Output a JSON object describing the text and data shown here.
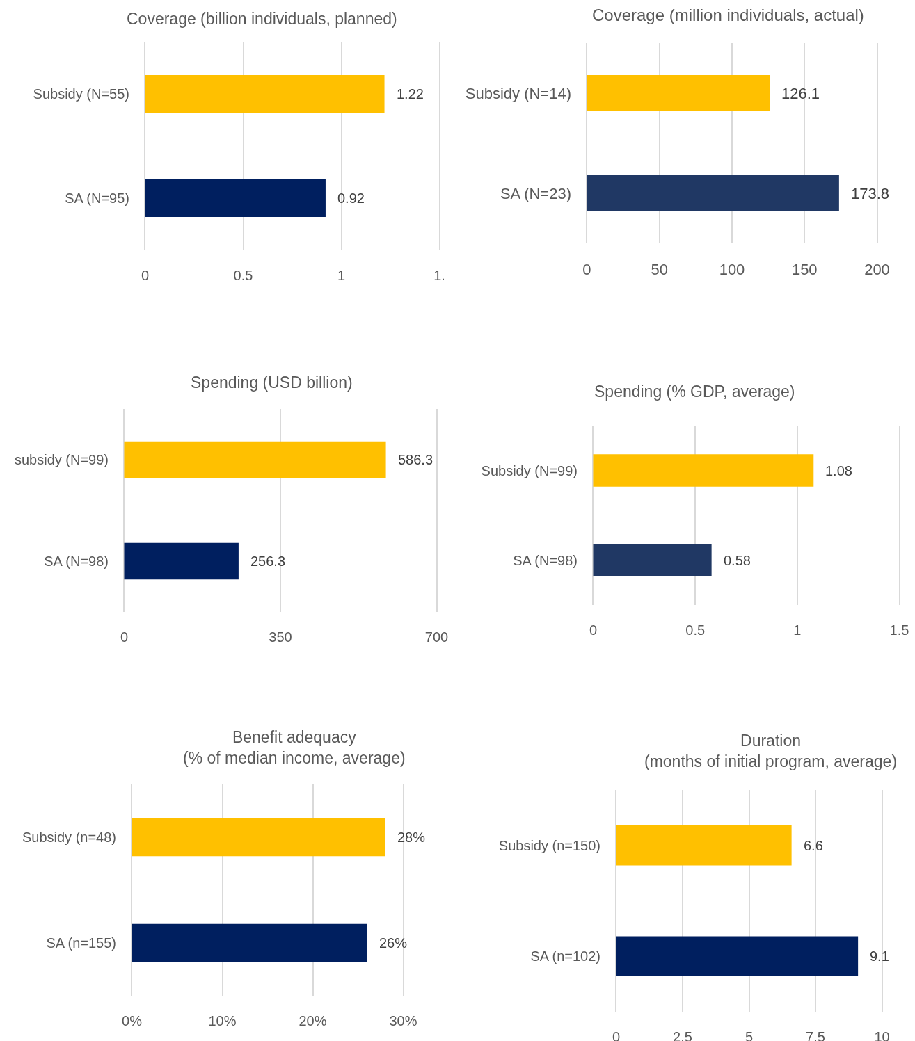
{
  "chart_data": [
    {
      "type": "bar",
      "orientation": "horizontal",
      "title": "Coverage (billion individuals, planned)",
      "categories": [
        "Subsidy (N=55)",
        "SA (N=95)"
      ],
      "values": [
        1.22,
        0.92
      ],
      "colors": [
        "#ffc000",
        "#001f5f"
      ],
      "xlim": [
        0,
        1.5
      ],
      "xticks": [
        0,
        0.5,
        1,
        {
          "value": 1.5,
          "label": "1."
        }
      ],
      "grid": "x",
      "data_labels": true
    },
    {
      "type": "bar",
      "orientation": "horizontal",
      "title": "Coverage (million individuals, actual)",
      "categories": [
        "Subsidy (N=14)",
        "SA (N=23)"
      ],
      "values": [
        126.1,
        173.8
      ],
      "colors": [
        "#ffc000",
        "#203864"
      ],
      "xlim": [
        0,
        200
      ],
      "xticks": [
        0,
        50,
        100,
        150,
        200
      ],
      "grid": "x",
      "data_labels": true
    },
    {
      "type": "bar",
      "orientation": "horizontal",
      "title": "Spending (USD billion)",
      "categories": [
        "subsidy (N=99)",
        "SA (N=98)"
      ],
      "values": [
        586.3,
        256.3
      ],
      "colors": [
        "#ffc000",
        "#001f5f"
      ],
      "xlim": [
        0,
        700
      ],
      "xticks": [
        0,
        350,
        700
      ],
      "grid": "x",
      "data_labels": true
    },
    {
      "type": "bar",
      "orientation": "horizontal",
      "title": "Spending (% GDP, average)",
      "categories": [
        "Subsidy (N=99)",
        "SA (N=98)"
      ],
      "values": [
        1.08,
        0.58
      ],
      "colors": [
        "#ffc000",
        "#203864"
      ],
      "xlim": [
        0,
        1.5
      ],
      "xticks": [
        0,
        0.5,
        1,
        1.5
      ],
      "grid": "x",
      "data_labels": true
    },
    {
      "type": "bar",
      "orientation": "horizontal",
      "title": "Benefit adequacy\n(% of median income, average)",
      "categories": [
        "Subsidy (n=48)",
        "SA (n=155)"
      ],
      "values": [
        28,
        26
      ],
      "value_labels": [
        "28%",
        "26%"
      ],
      "colors": [
        "#ffc000",
        "#001f5f"
      ],
      "xlim": [
        0,
        30
      ],
      "xticks": [
        {
          "value": 0,
          "label": "0%"
        },
        {
          "value": 10,
          "label": "10%"
        },
        {
          "value": 20,
          "label": "20%"
        },
        {
          "value": 30,
          "label": "30%"
        }
      ],
      "grid": "x"
    },
    {
      "type": "bar",
      "orientation": "horizontal",
      "title": "Duration\n(months of initial program, average)",
      "categories": [
        "Subsidy (n=150)",
        "SA (n=102)"
      ],
      "values": [
        6.6,
        9.1
      ],
      "colors": [
        "#ffc000",
        "#001f5f"
      ],
      "xlim": [
        0,
        10
      ],
      "xticks": [
        0,
        2.5,
        5,
        7.5,
        10
      ],
      "grid": "x",
      "data_labels": true
    }
  ]
}
